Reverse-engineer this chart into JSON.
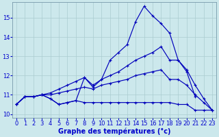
{
  "xlabel": "Graphe des températures (°c)",
  "hours": [
    0,
    1,
    2,
    3,
    4,
    5,
    6,
    7,
    8,
    9,
    10,
    11,
    12,
    13,
    14,
    15,
    16,
    17,
    18,
    19,
    20,
    21,
    22,
    23
  ],
  "line_main": [
    10.5,
    10.9,
    10.9,
    11.0,
    10.8,
    10.5,
    10.6,
    10.7,
    11.9,
    11.4,
    11.8,
    12.8,
    13.2,
    13.6,
    14.8,
    15.6,
    15.1,
    14.7,
    14.2,
    12.8,
    12.2,
    10.9,
    null,
    null
  ],
  "line_upper": [
    10.5,
    10.9,
    10.9,
    11.0,
    11.1,
    11.3,
    11.5,
    11.7,
    11.9,
    11.5,
    11.8,
    12.0,
    12.2,
    12.5,
    12.8,
    13.0,
    13.2,
    13.5,
    12.8,
    12.8,
    12.3,
    11.5,
    10.8,
    10.2
  ],
  "line_mid": [
    10.5,
    10.9,
    10.9,
    11.0,
    11.0,
    11.1,
    11.2,
    11.3,
    11.4,
    11.3,
    11.5,
    11.6,
    11.7,
    11.8,
    12.0,
    12.1,
    12.2,
    12.3,
    11.8,
    11.8,
    11.5,
    11.0,
    10.6,
    10.2
  ],
  "line_flat": [
    10.5,
    10.9,
    10.9,
    11.0,
    10.8,
    10.5,
    10.6,
    10.7,
    10.6,
    10.6,
    10.6,
    10.6,
    10.6,
    10.6,
    10.6,
    10.6,
    10.6,
    10.6,
    10.6,
    10.5,
    10.5,
    10.2,
    10.2,
    10.2
  ],
  "ylim": [
    9.8,
    15.8
  ],
  "xlim": [
    -0.5,
    23.5
  ],
  "yticks": [
    10,
    11,
    12,
    13,
    14,
    15
  ],
  "xticks": [
    0,
    1,
    2,
    3,
    4,
    5,
    6,
    7,
    8,
    9,
    10,
    11,
    12,
    13,
    14,
    15,
    16,
    17,
    18,
    19,
    20,
    21,
    22,
    23
  ],
  "bg_color": "#cce8ec",
  "grid_color": "#aaccd0",
  "line_color": "#0000bb",
  "label_color": "#0000cc",
  "tick_fontsize": 6,
  "xlabel_fontsize": 7
}
